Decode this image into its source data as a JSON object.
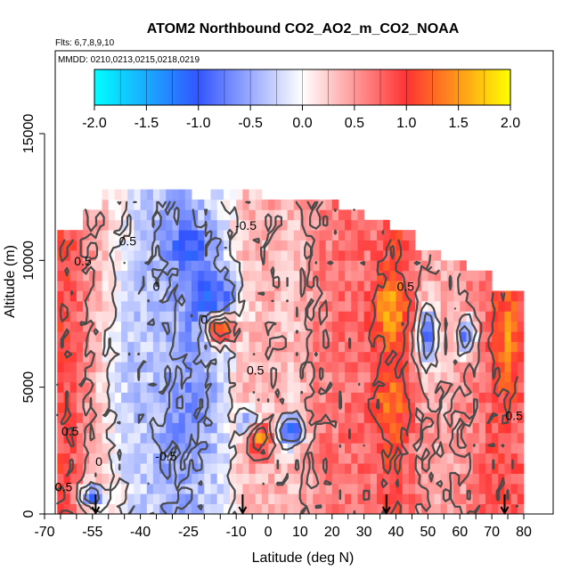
{
  "chart_data": {
    "type": "heatmap",
    "title": "ATOM2 Northbound CO2_AO2_m_CO2_NOAA",
    "subtitle_flights": "Flts: 6,7,8,9,10",
    "subtitle_dates": "MMDD: 0210,0213,0215,0218,0219",
    "xlabel": "Latitude (deg N)",
    "ylabel": "Altitude (m)",
    "xlim": [
      -70,
      82
    ],
    "ylim": [
      0,
      17500
    ],
    "x_ticks": [
      -70,
      -55,
      -40,
      -25,
      -10,
      0,
      10,
      20,
      30,
      40,
      50,
      60,
      70,
      80
    ],
    "x_tick_labels": [
      "-70",
      "-55",
      "-40",
      "-25",
      "-10",
      "0",
      "10",
      "20",
      "30",
      "40",
      "50",
      "60",
      "70",
      "80"
    ],
    "y_ticks": [
      0,
      5000,
      10000,
      15000
    ],
    "y_tick_labels": [
      "0",
      "5000",
      "10000",
      "15000"
    ],
    "colorbar": {
      "range": [
        -2.0,
        2.0
      ],
      "ticks": [
        -2.0,
        -1.5,
        -1.0,
        -0.5,
        0.0,
        0.5,
        1.0,
        1.5,
        2.0
      ],
      "tick_labels": [
        "-2.0",
        "-1.5",
        "-1.0",
        "-0.5",
        "0.0",
        "0.5",
        "1.0",
        "1.5",
        "2.0"
      ],
      "colors": [
        "#00ffff",
        "#3366ff",
        "#ffffff",
        "#ff3333",
        "#ffff00"
      ]
    },
    "contour_levels": [
      -0.5,
      0,
      0.5,
      1
    ],
    "contour_labels": [
      {
        "text": "0.5",
        "x": -44,
        "y": 10600
      },
      {
        "text": "0.5",
        "x": -58,
        "y": 9800
      },
      {
        "text": "0",
        "x": -35,
        "y": 8800
      },
      {
        "text": "0",
        "x": -20,
        "y": 7500
      },
      {
        "text": "-0.5",
        "x": -7,
        "y": 11200
      },
      {
        "text": "0.5",
        "x": -4,
        "y": 5500
      },
      {
        "text": "0.5",
        "x": 43,
        "y": 8800
      },
      {
        "text": "0.5",
        "x": 77,
        "y": 3700
      },
      {
        "text": "0.5",
        "x": -62,
        "y": 3100
      },
      {
        "text": "0",
        "x": -53,
        "y": 1900
      },
      {
        "text": "-0.5",
        "x": -32,
        "y": 2100
      },
      {
        "text": "0.5",
        "x": -64,
        "y": 900
      }
    ],
    "arrows_at_latitude": [
      -54,
      -8,
      37,
      74
    ],
    "cross_sections": [
      {
        "x": -62,
        "alt_max": 11000,
        "value": 0.9
      },
      {
        "x": -57,
        "alt_max": 12000,
        "value": 0.6
      },
      {
        "x": -48,
        "alt_max": 12500,
        "value": 0.2
      },
      {
        "x": -40,
        "alt_max": 12500,
        "value": -0.2
      },
      {
        "x": -30,
        "alt_max": 12500,
        "value": -0.5
      },
      {
        "x": -22,
        "alt_max": 12200,
        "value": -0.4
      },
      {
        "x": -15,
        "alt_max": 12500,
        "value": -0.2
      },
      {
        "x": -8,
        "alt_max": 12800,
        "value": 0.3
      },
      {
        "x": 0,
        "alt_max": 12300,
        "value": 0.4
      },
      {
        "x": 8,
        "alt_max": 12300,
        "value": 0.3
      },
      {
        "x": 16,
        "alt_max": 12300,
        "value": 0.6
      },
      {
        "x": 24,
        "alt_max": 12000,
        "value": 0.7
      },
      {
        "x": 32,
        "alt_max": 11500,
        "value": 0.7
      },
      {
        "x": 40,
        "alt_max": 11000,
        "value": 1.0
      },
      {
        "x": 48,
        "alt_max": 10300,
        "value": 0.5
      },
      {
        "x": 56,
        "alt_max": 9800,
        "value": 0.4
      },
      {
        "x": 64,
        "alt_max": 9300,
        "value": 0.6
      },
      {
        "x": 72,
        "alt_max": 8800,
        "value": 0.9
      },
      {
        "x": 77,
        "alt_max": 8800,
        "value": 0.8
      }
    ],
    "features": [
      {
        "x": -18,
        "y": 8300,
        "value": -1.2,
        "size": [
          8,
          1300
        ]
      },
      {
        "x": -26,
        "y": 10500,
        "value": -1.0,
        "size": [
          8,
          900
        ]
      },
      {
        "x": -15,
        "y": 7300,
        "value": 1.6,
        "size": [
          5,
          600
        ]
      },
      {
        "x": -5,
        "y": 3500,
        "value": -1.2,
        "size": [
          4,
          600
        ]
      },
      {
        "x": 7,
        "y": 3300,
        "value": -1.2,
        "size": [
          4,
          600
        ]
      },
      {
        "x": -3,
        "y": 3000,
        "value": 1.5,
        "size": [
          4,
          700
        ]
      },
      {
        "x": 38,
        "y": 8000,
        "value": 1.6,
        "size": [
          5,
          1200
        ]
      },
      {
        "x": 38,
        "y": 4500,
        "value": 1.3,
        "size": [
          5,
          1500
        ]
      },
      {
        "x": 50,
        "y": 7000,
        "value": -1.0,
        "size": [
          3,
          1200
        ]
      },
      {
        "x": 62,
        "y": 7000,
        "value": -0.9,
        "size": [
          3,
          800
        ]
      },
      {
        "x": 75,
        "y": 7000,
        "value": 1.4,
        "size": [
          4,
          2000
        ]
      },
      {
        "x": -55,
        "y": 700,
        "value": -1.0,
        "size": [
          4,
          500
        ]
      },
      {
        "x": -30,
        "y": 4500,
        "value": -0.7,
        "size": [
          12,
          2500
        ]
      },
      {
        "x": -35,
        "y": 7800,
        "value": -0.5,
        "size": [
          10,
          1500
        ]
      },
      {
        "x": -40,
        "y": 5500,
        "value": -0.3,
        "size": [
          10,
          5000
        ]
      }
    ]
  }
}
